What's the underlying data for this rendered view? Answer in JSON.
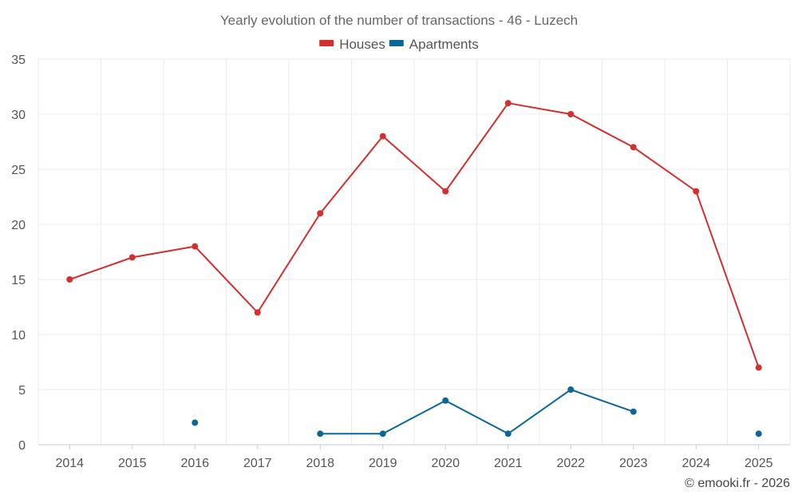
{
  "chart_data": {
    "type": "line",
    "title": "Yearly evolution of the number of transactions - 46 - Luzech",
    "categories": [
      "2014",
      "2015",
      "2016",
      "2017",
      "2018",
      "2019",
      "2020",
      "2021",
      "2022",
      "2023",
      "2024",
      "2025"
    ],
    "ylim": [
      0,
      35
    ],
    "yticks": [
      0,
      5,
      10,
      15,
      20,
      25,
      30,
      35
    ],
    "grid": true,
    "legend_position": "top-center",
    "series": [
      {
        "name": "Houses",
        "color": "#d32f2f",
        "values": [
          15,
          17,
          18,
          12,
          21,
          28,
          23,
          31,
          30,
          27,
          23,
          7
        ]
      },
      {
        "name": "Apartments",
        "color": "#0b6799",
        "values": [
          null,
          null,
          2,
          null,
          1,
          1,
          4,
          1,
          5,
          3,
          null,
          1
        ]
      }
    ]
  },
  "credit": "© emooki.fr - 2026"
}
